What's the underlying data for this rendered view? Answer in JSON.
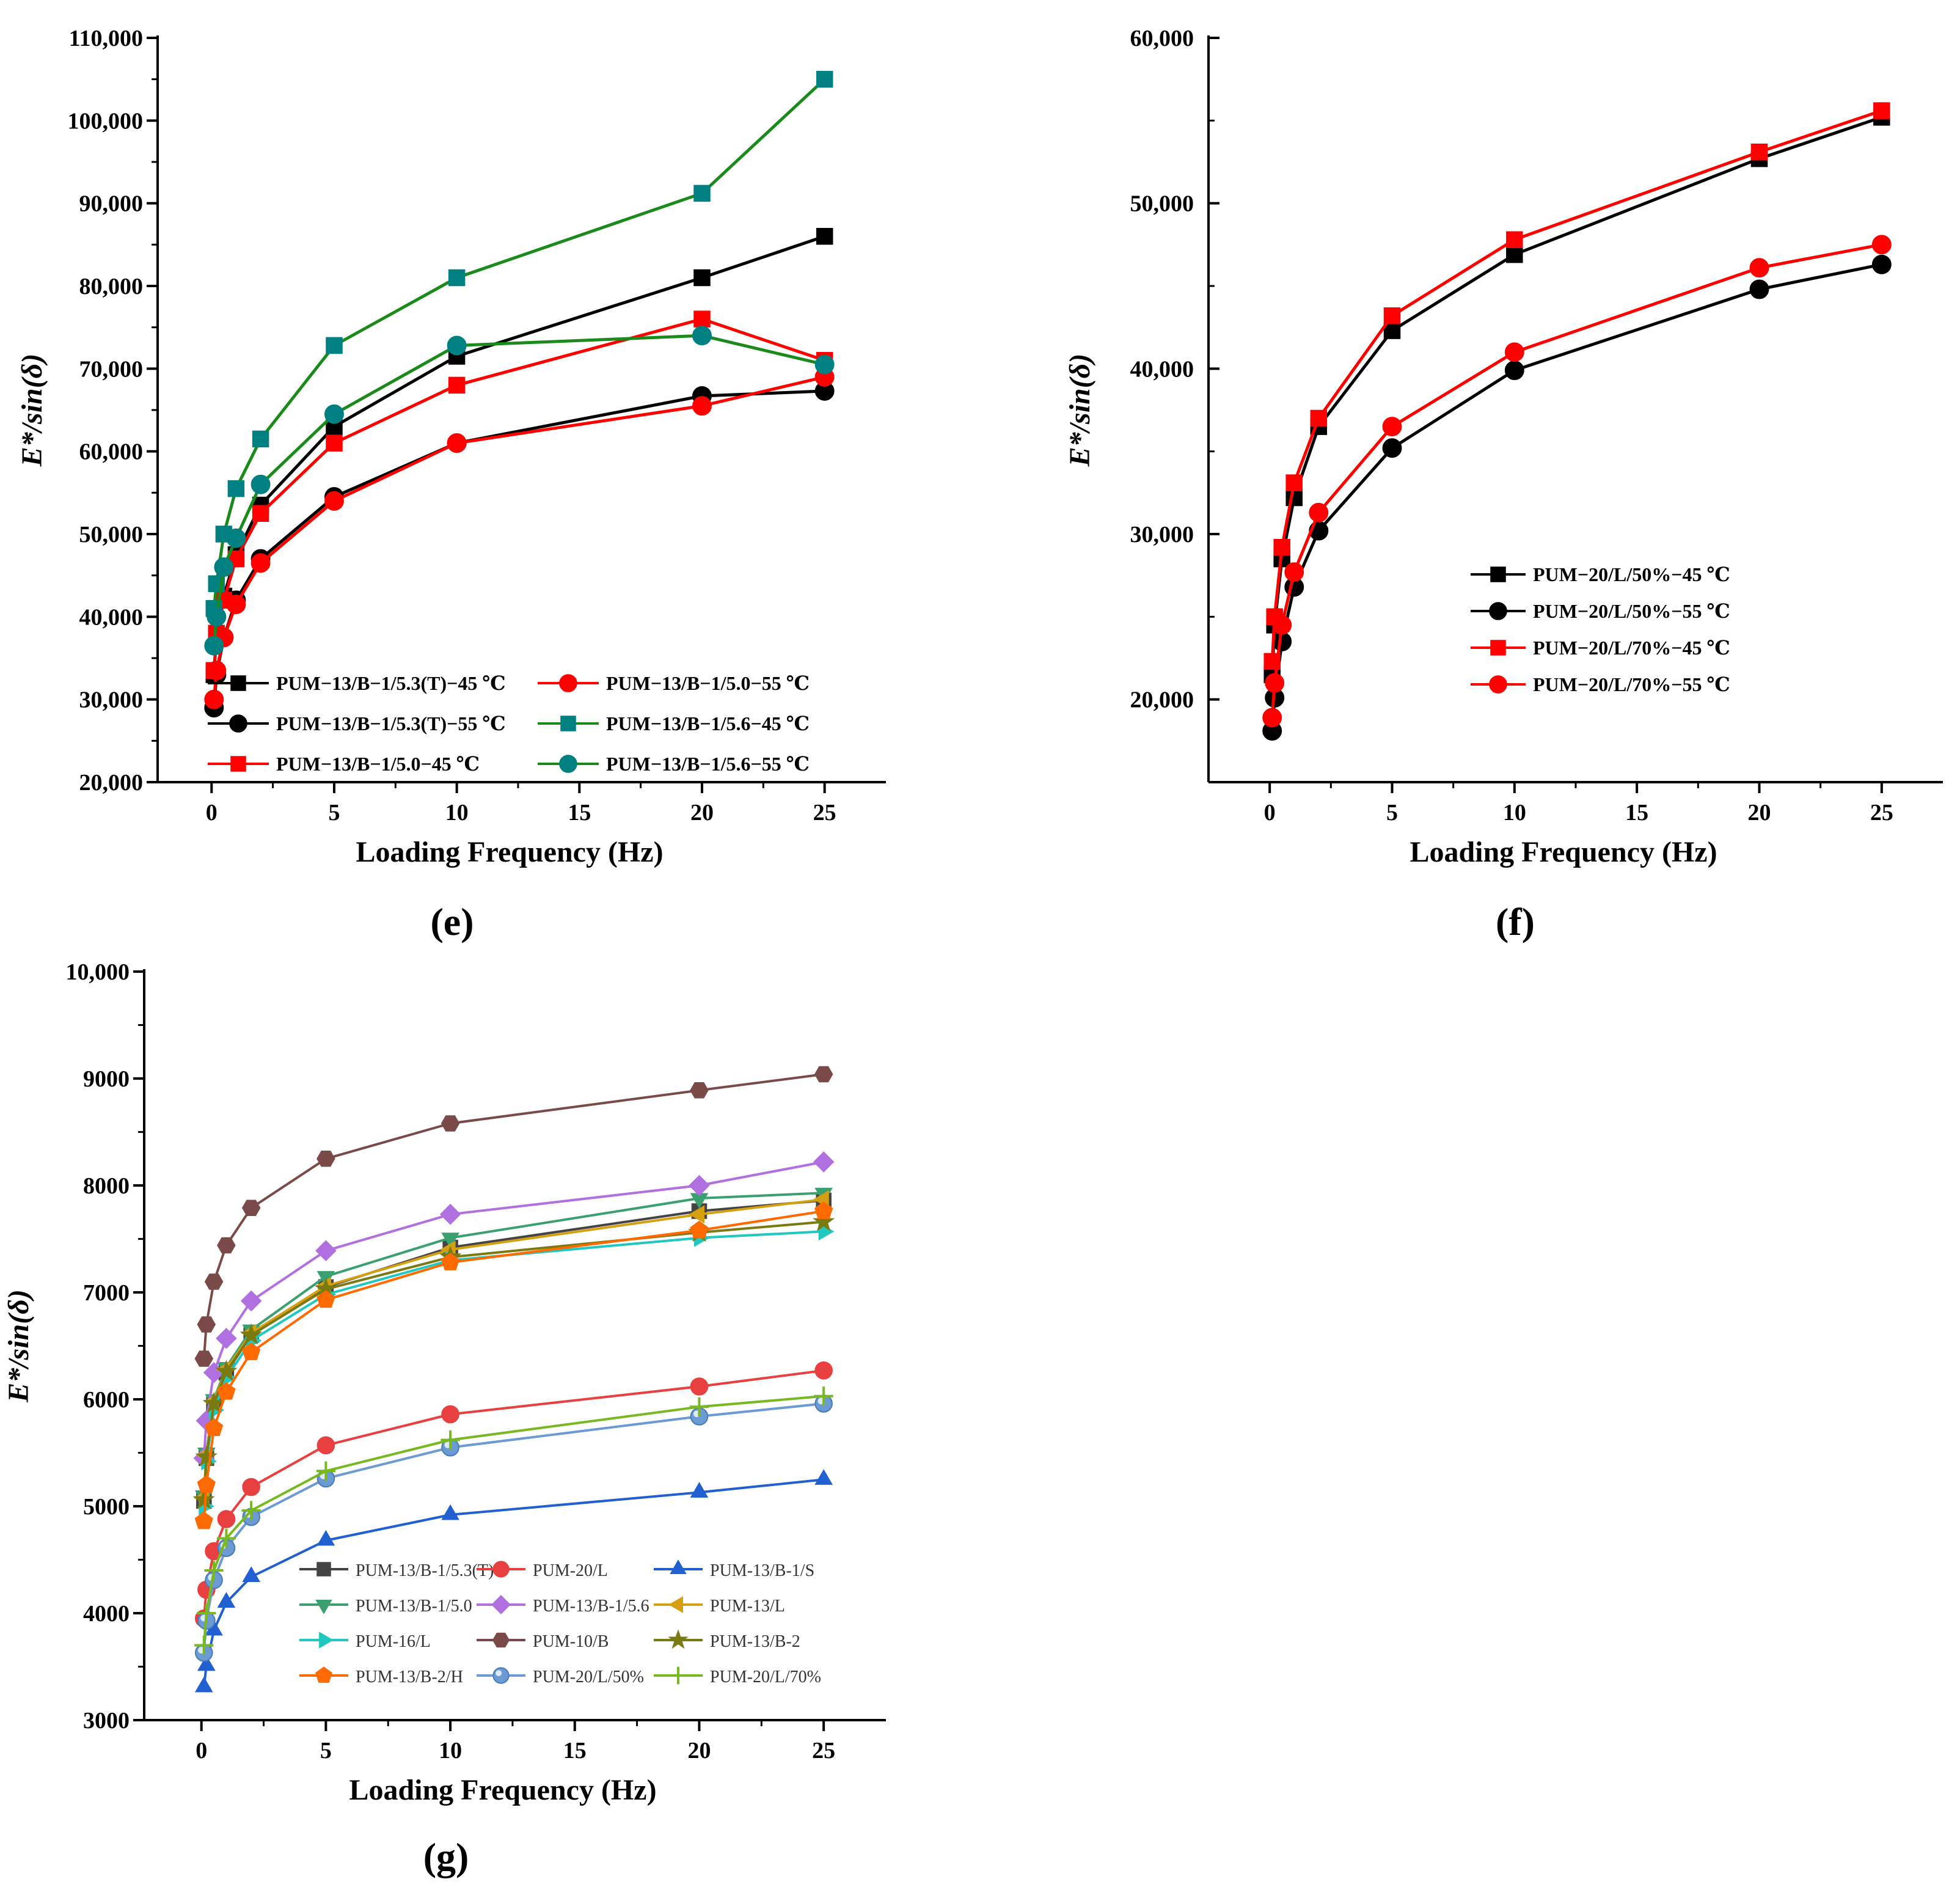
{
  "chart_data": [
    {
      "panel": "e",
      "panel_label": "(e)",
      "type": "line",
      "xlabel": "Loading Frequency (Hz)",
      "ylabel_main": "E*/",
      "ylabel_func": "sin",
      "ylabel_arg": "(δ)",
      "xlim": [
        -2.2,
        27.5
      ],
      "ylim": [
        20000,
        110000
      ],
      "xticks": [
        0,
        5,
        10,
        15,
        20,
        25
      ],
      "yticks": [
        20000,
        30000,
        40000,
        50000,
        60000,
        70000,
        80000,
        90000,
        100000,
        110000
      ],
      "ytick_labels": [
        "20,000",
        "30,000",
        "40,000",
        "50,000",
        "60,000",
        "70,000",
        "80,000",
        "90,000",
        "100,000",
        "110,000"
      ],
      "xtick_labels": [
        "0",
        "5",
        "10",
        "15",
        "20",
        "25"
      ],
      "x": [
        0.1,
        0.2,
        0.5,
        1,
        2,
        5,
        10,
        20,
        25
      ],
      "legend": {
        "columns": 2,
        "placement": "lower-right"
      },
      "series": [
        {
          "name": "PUM−13/B−1/5.3(T)−45 ℃",
          "color": "#000000",
          "marker": "square",
          "values": [
            33000,
            38000,
            42500,
            47500,
            53500,
            63000,
            71500,
            81000,
            86000
          ]
        },
        {
          "name": "PUM−13/B−1/5.3(T)−55 ℃",
          "color": "#000000",
          "marker": "circle",
          "values": [
            29000,
            33000,
            37500,
            42000,
            47000,
            54500,
            61000,
            66700,
            67300
          ]
        },
        {
          "name": "PUM−13/B−1/5.0−45 ℃",
          "color": "#ff0000",
          "marker": "square",
          "values": [
            33500,
            38000,
            42000,
            47000,
            52500,
            61000,
            68000,
            76000,
            71000
          ]
        },
        {
          "name": "PUM−13/B−1/5.0−55 ℃",
          "color": "#ff0000",
          "marker": "circle",
          "values": [
            30000,
            33500,
            37500,
            41500,
            46500,
            54000,
            61000,
            65500,
            69000
          ]
        },
        {
          "name": "PUM−13/B−1/5.6−45 ℃",
          "color": "#008080",
          "line_color": "#1a8a1a",
          "marker": "square",
          "values": [
            41000,
            44000,
            50000,
            55500,
            61500,
            72800,
            81000,
            91200,
            105000
          ]
        },
        {
          "name": "PUM−13/B−1/5.6−55 ℃",
          "color": "#008080",
          "line_color": "#1a8a1a",
          "marker": "circle",
          "values": [
            36500,
            40000,
            46000,
            49500,
            56000,
            64500,
            72800,
            74000,
            70500
          ]
        }
      ]
    },
    {
      "panel": "f",
      "panel_label": "(f)",
      "type": "line",
      "xlabel": "Loading Frequency (Hz)",
      "ylabel_main": "E*/",
      "ylabel_func": "sin",
      "ylabel_arg": "(δ)",
      "xlim": [
        -2.5,
        27.5
      ],
      "ylim": [
        15000,
        60000
      ],
      "xticks": [
        0,
        5,
        10,
        15,
        20,
        25
      ],
      "yticks": [
        20000,
        30000,
        40000,
        50000,
        60000
      ],
      "ytick_labels": [
        "20,000",
        "30,000",
        "40,000",
        "50,000",
        "60,000"
      ],
      "xtick_labels": [
        "0",
        "5",
        "10",
        "15",
        "20",
        "25"
      ],
      "x": [
        0.1,
        0.2,
        0.5,
        1,
        2,
        5,
        10,
        20,
        25
      ],
      "legend": {
        "columns": 1,
        "placement": "center-left"
      },
      "series": [
        {
          "name": "PUM−20/L/50%−45 ℃",
          "color": "#000000",
          "marker": "square",
          "values": [
            21500,
            24500,
            28500,
            32200,
            36500,
            42300,
            46900,
            52700,
            55200
          ]
        },
        {
          "name": "PUM−20/L/50%−55 ℃",
          "color": "#000000",
          "marker": "circle",
          "values": [
            18100,
            20100,
            23500,
            26800,
            30200,
            35200,
            39900,
            44800,
            46300
          ]
        },
        {
          "name": "PUM−20/L/70%−45 ℃",
          "color": "#ff0000",
          "marker": "square",
          "values": [
            22300,
            25000,
            29200,
            33100,
            37000,
            43200,
            47800,
            53100,
            55600
          ]
        },
        {
          "name": "PUM−20/L/70%−55 ℃",
          "color": "#ff0000",
          "marker": "circle",
          "values": [
            18900,
            21000,
            24500,
            27700,
            31300,
            36500,
            41000,
            46100,
            47500
          ]
        }
      ]
    },
    {
      "panel": "g",
      "panel_label": "(g)",
      "type": "line",
      "xlabel": "Loading Frequency (Hz)",
      "ylabel_main": "E*/",
      "ylabel_func": "sin",
      "ylabel_arg": "(δ)",
      "xlim": [
        -2.3,
        27.5
      ],
      "ylim": [
        3000,
        10000
      ],
      "xticks": [
        0,
        5,
        10,
        15,
        20,
        25
      ],
      "yticks": [
        3000,
        4000,
        5000,
        6000,
        7000,
        8000,
        9000,
        10000
      ],
      "ytick_labels": [
        "3000",
        "4000",
        "5000",
        "6000",
        "7000",
        "8000",
        "9000",
        "10,000"
      ],
      "xtick_labels": [
        "0",
        "5",
        "10",
        "15",
        "20",
        "25"
      ],
      "x": [
        0.1,
        0.2,
        0.5,
        1,
        2,
        5,
        10,
        20,
        25
      ],
      "legend": {
        "columns": 3,
        "placement": "lower-center"
      },
      "series": [
        {
          "name": "PUM-13/B-1/5.3(T)",
          "color": "#444444",
          "marker": "square",
          "values": [
            5050,
            5450,
            5950,
            6250,
            6600,
            7050,
            7420,
            7760,
            7860
          ]
        },
        {
          "name": "PUM-20/L",
          "color": "#e84040",
          "marker": "circle",
          "values": [
            3950,
            4220,
            4580,
            4880,
            5180,
            5570,
            5860,
            6120,
            6270
          ]
        },
        {
          "name": "PUM-13/B-1/S",
          "color": "#2060d0",
          "marker": "triangle-up",
          "values": [
            3310,
            3510,
            3840,
            4100,
            4340,
            4680,
            4920,
            5130,
            5250
          ]
        },
        {
          "name": "PUM-13/B-1/5.0",
          "color": "#3aa070",
          "marker": "triangle-down",
          "values": [
            5100,
            5500,
            6000,
            6300,
            6650,
            7150,
            7510,
            7880,
            7930
          ]
        },
        {
          "name": "PUM-13/B-1/5.6",
          "color": "#b070e0",
          "marker": "diamond",
          "values": [
            5450,
            5800,
            6250,
            6570,
            6920,
            7390,
            7730,
            8000,
            8220
          ]
        },
        {
          "name": "PUM-13/L",
          "color": "#d4a010",
          "marker": "triangle-left",
          "values": [
            5080,
            5480,
            5980,
            6280,
            6620,
            7060,
            7400,
            7730,
            7870
          ]
        },
        {
          "name": "PUM-16/L",
          "color": "#20c8c0",
          "marker": "triangle-right",
          "values": [
            5000,
            5420,
            5900,
            6200,
            6550,
            6980,
            7300,
            7510,
            7570
          ]
        },
        {
          "name": "PUM-10/B",
          "color": "#7a4a48",
          "marker": "hexagon",
          "values": [
            6380,
            6700,
            7100,
            7440,
            7790,
            8250,
            8580,
            8890,
            9040
          ]
        },
        {
          "name": "PUM-13/B-2",
          "color": "#7a7a10",
          "marker": "star",
          "values": [
            5060,
            5460,
            5960,
            6260,
            6600,
            7030,
            7330,
            7560,
            7660
          ]
        },
        {
          "name": "PUM-13/B-2/H",
          "color": "#ff6a00",
          "marker": "pentagon",
          "values": [
            4860,
            5200,
            5730,
            6070,
            6440,
            6930,
            7280,
            7580,
            7760
          ]
        },
        {
          "name": "PUM-20/L/50%",
          "color": "#6b9bd2",
          "marker": "sphere",
          "values": [
            3630,
            3930,
            4310,
            4610,
            4900,
            5260,
            5550,
            5840,
            5960
          ]
        },
        {
          "name": "PUM-20/L/70%",
          "color": "#78b820",
          "marker": "plus",
          "values": [
            3700,
            4000,
            4400,
            4700,
            4960,
            5330,
            5620,
            5930,
            6030
          ]
        }
      ]
    }
  ]
}
